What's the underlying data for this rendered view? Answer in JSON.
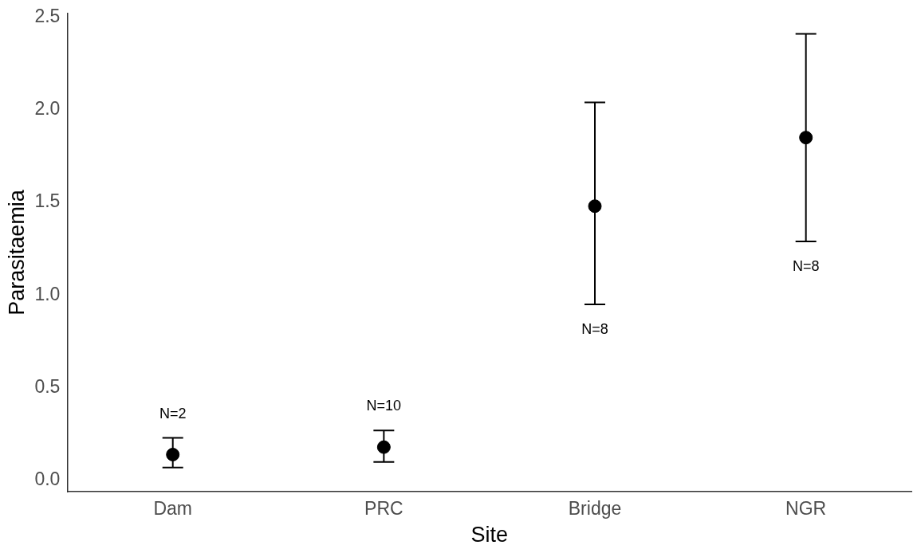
{
  "chart_data": {
    "type": "scatter",
    "xlabel": "Site",
    "ylabel": "Parasitaemia",
    "categories": [
      "Dam",
      "PRC",
      "Bridge",
      "NGR"
    ],
    "series": [
      {
        "color": "#000000",
        "values": [
          0.14,
          0.18,
          1.48,
          1.85
        ],
        "errors": [
          [
            0.07,
            0.23
          ],
          [
            0.1,
            0.27
          ],
          [
            0.95,
            2.04
          ],
          [
            1.29,
            2.41
          ]
        ]
      }
    ],
    "ylim": [
      -0.06,
      2.52
    ],
    "yticks": [
      {
        "value": 0,
        "label": "0.0"
      },
      {
        "value": 0.5,
        "label": "0.5"
      },
      {
        "value": 1,
        "label": "1.0"
      },
      {
        "value": 1.5,
        "label": "1.5"
      },
      {
        "value": 2,
        "label": "2.0"
      },
      {
        "value": 2.5,
        "label": "2.5"
      }
    ],
    "grid": false,
    "legend": false,
    "marker": "circle",
    "annotations": [
      {
        "text": "N=2",
        "x": "Dam",
        "y": 0.23
      },
      {
        "text": "N=10",
        "x": "PRC",
        "y": 0.27
      },
      {
        "text": "N=8",
        "x": "Bridge",
        "y": 0.95
      },
      {
        "text": "N=8",
        "x": "NGR",
        "y": 1.29
      }
    ]
  }
}
